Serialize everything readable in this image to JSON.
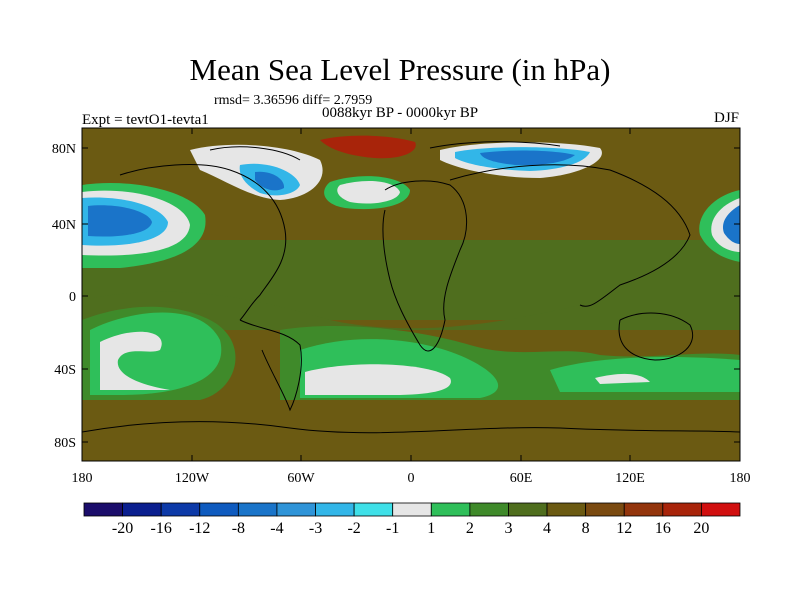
{
  "title": "Mean Sea Level Pressure (in hPa)",
  "stats": "rmsd= 3.36596 diff= 2.7959",
  "period": "0088kyr BP - 0000kyr BP",
  "experiment": "Expt = tevtO1-tevta1",
  "season": "DJF",
  "axes": {
    "lat_labels": [
      "80N",
      "40N",
      "0",
      "40S",
      "80S"
    ],
    "lon_labels": [
      "180",
      "120W",
      "60W",
      "0",
      "60E",
      "120E",
      "180"
    ]
  },
  "colorbar": {
    "labels": [
      "-20",
      "-16",
      "-12",
      "-8",
      "-4",
      "-3",
      "-2",
      "-1",
      "1",
      "2",
      "3",
      "4",
      "8",
      "12",
      "16",
      "20"
    ],
    "colors": [
      "#1b0d6b",
      "#0b1f8f",
      "#0d3aa8",
      "#0f5bbf",
      "#1a74c9",
      "#2f94d8",
      "#32b6e8",
      "#3fe0e8",
      "#e6e6e6",
      "#2fbf5a",
      "#3f8a2a",
      "#4f6e1e",
      "#6b5a12",
      "#7a4a10",
      "#93350c",
      "#a8240a",
      "#d10f0f"
    ]
  },
  "colors": {
    "background": "#7a5a12",
    "land_line": "#000000"
  }
}
